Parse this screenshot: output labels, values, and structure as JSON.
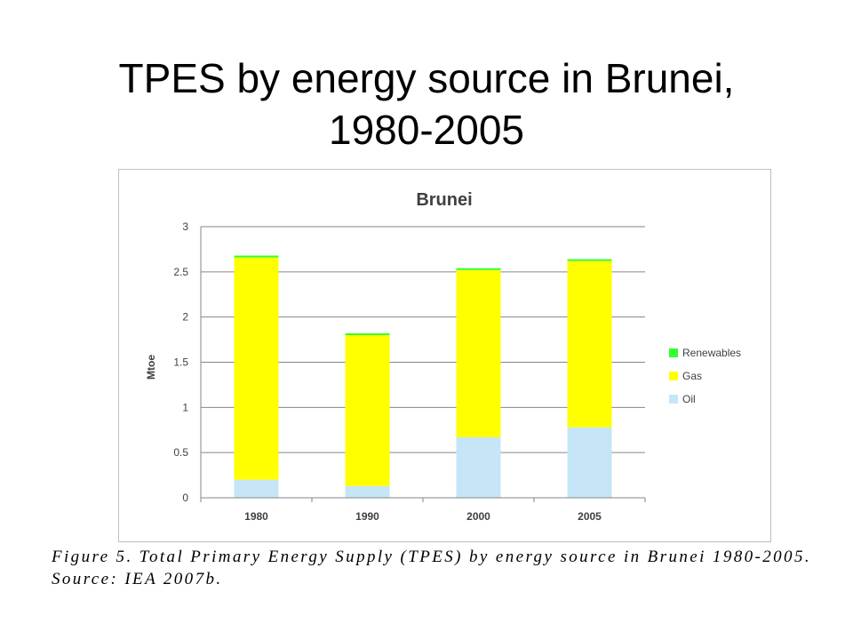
{
  "slide": {
    "title_line1": "TPES by energy source in Brunei,",
    "title_line2": "1980-2005"
  },
  "caption": {
    "line1": "Figure 5. Total Primary Energy Supply (TPES) by energy source in Brunei 1980-2005.",
    "line2": "Source: IEA 2007b."
  },
  "chart_data": {
    "type": "bar",
    "stacked": true,
    "title": "Brunei",
    "xlabel": "",
    "ylabel": "Mtoe",
    "categories": [
      "1980",
      "1990",
      "2000",
      "2005"
    ],
    "ylim": [
      0,
      3
    ],
    "yticks": [
      "0",
      "0.5",
      "1",
      "1.5",
      "2",
      "2.5",
      "3"
    ],
    "grid": true,
    "legend_position": "right",
    "series": [
      {
        "name": "Oil",
        "color": "#c6e6f8",
        "values": [
          0.2,
          0.13,
          0.67,
          0.78
        ]
      },
      {
        "name": "Gas",
        "color": "#ffff00",
        "values": [
          2.46,
          1.67,
          1.85,
          1.84
        ]
      },
      {
        "name": "Renewables",
        "color": "#33ff33",
        "values": [
          0.02,
          0.02,
          0.02,
          0.02
        ]
      }
    ]
  }
}
